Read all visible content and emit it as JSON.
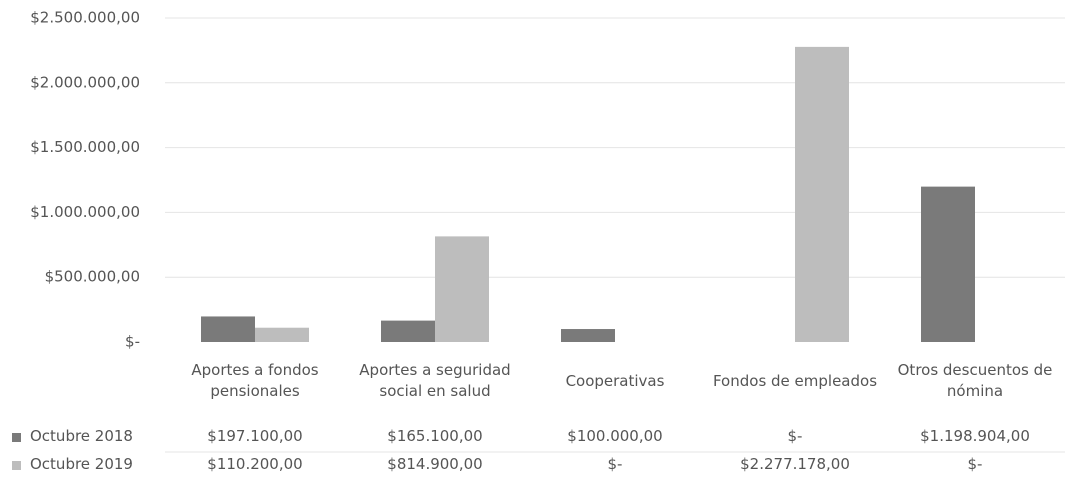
{
  "chart_data": {
    "type": "bar",
    "categories": [
      "Aportes a fondos pensionales",
      "Aportes a seguridad social en salud",
      "Cooperativas",
      "Fondos de empleados",
      "Otros descuentos de nómina"
    ],
    "series": [
      {
        "name": "Octubre 2018",
        "color": "#7a7a7a",
        "values": [
          197100,
          165100,
          100000,
          0,
          1198904
        ],
        "value_labels": [
          "$197.100,00",
          "$165.100,00",
          "$100.000,00",
          "$-",
          "$1.198.904,00"
        ]
      },
      {
        "name": "Octubre 2019",
        "color": "#bdbdbd",
        "values": [
          110200,
          814900,
          0,
          2277178,
          0
        ],
        "value_labels": [
          "$110.200,00",
          "$814.900,00",
          "$-",
          "$2.277.178,00",
          "$-"
        ]
      }
    ],
    "ylim": [
      0,
      2500000
    ],
    "yticks": [
      {
        "value": 0,
        "label": "$-"
      },
      {
        "value": 500000,
        "label": "$500.000,00"
      },
      {
        "value": 1000000,
        "label": "$1.000.000,00"
      },
      {
        "value": 1500000,
        "label": "$1.500.000,00"
      },
      {
        "value": 2000000,
        "label": "$2.000.000,00"
      },
      {
        "value": 2500000,
        "label": "$2.500.000,00"
      }
    ],
    "grid": true
  }
}
